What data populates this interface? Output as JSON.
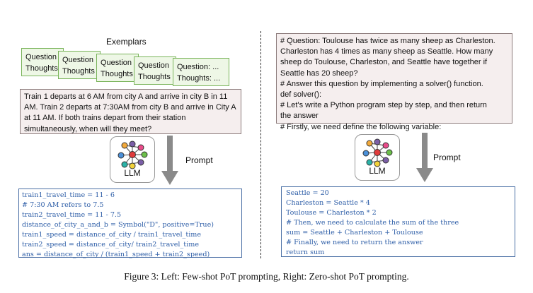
{
  "left": {
    "exemplars_title": "Exemplars",
    "cards": [
      {
        "line1": "Question",
        "line2": "Thoughts"
      },
      {
        "line1": "Question",
        "line2": "Thoughts"
      },
      {
        "line1": "Question",
        "line2": "Thoughts"
      },
      {
        "line1": "Question",
        "line2": "Thoughts"
      },
      {
        "line1": "Question: ...",
        "line2": "Thoughts: ..."
      }
    ],
    "question_lines": [
      "Train 1 departs at 6 AM from city A and arrive in city B in 11",
      "AM. Train 2 departs at 7:30AM from city B and arrive in City A",
      "at 11 AM.  If both trains depart from their station",
      "simultaneously, when will they meet?"
    ],
    "llm_label": "LLM",
    "prompt_label": "Prompt",
    "code_lines": [
      "train1_travel_time = 11 - 6",
      "# 7:30 AM refers to 7.5",
      "train2_travel_time = 11 - 7.5",
      "distance_of_city_a_and_b = Symbol(\"D\", positive=True)",
      "train1_speed = distance_of_city / train1_travel_time",
      "train2_speed = distance_of_city/ train2_travel_time",
      "ans = distance_of_city / (train1_speed + train2_speed)"
    ]
  },
  "right": {
    "question_lines": [
      "# Question: Toulouse has twice as many sheep as Charleston.",
      "Charleston has 4 times as many sheep as Seattle. How many",
      "sheep do Toulouse, Charleston, and Seattle have together if",
      "Seattle has 20 sheep?",
      "# Answer this question by implementing a solver() function.",
      "def solver():",
      "    # Let's write a Python program step by step, and then return",
      "the answer",
      "    # Firstly, we need define the following variable:"
    ],
    "llm_label": "LLM",
    "prompt_label": "Prompt",
    "code_lines": [
      "Seattle = 20",
      "Charleston = Seattle * 4",
      "Toulouse = Charleston * 2",
      "# Then, we need to calculate the sum of the three",
      "sum = Seattle + Charleston + Toulouse",
      "# Finally, we need to return the answer",
      "return sum"
    ]
  },
  "caption": "Figure 3: Left: Few-shot PoT prompting, Right: Zero-shot PoT prompting.",
  "colors": {
    "card_fill": "#eef7e6",
    "card_border": "#79b45a",
    "question_fill": "#f5eeee",
    "code_text": "#2f5fa8",
    "code_border": "#4a6fa5",
    "arrow": "#8a8a8a"
  },
  "icons": [
    "neural-network-icon",
    "arrow-down-icon"
  ]
}
